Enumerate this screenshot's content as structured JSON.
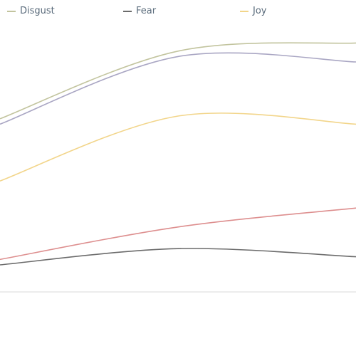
{
  "chart_data": {
    "type": "line",
    "x": [
      0,
      1,
      2
    ],
    "xlim": [
      0,
      2
    ],
    "ylim": [
      0,
      10
    ],
    "grid": false,
    "legend_position": "top-left",
    "series": [
      {
        "name": "Disgust",
        "color": "#c2c49e",
        "values": [
          6.4,
          8.9,
          9.2
        ]
      },
      {
        "name": "",
        "color": "#a9a6c3",
        "values": [
          6.2,
          8.7,
          8.5
        ]
      },
      {
        "name": "Joy",
        "color": "#f2d58a",
        "values": [
          4.1,
          6.5,
          6.2
        ]
      },
      {
        "name": "",
        "color": "#dd8e8e",
        "values": [
          1.2,
          2.4,
          3.1
        ]
      },
      {
        "name": "Fear",
        "color": "#6b6b6b",
        "values": [
          1.0,
          1.6,
          1.3
        ]
      }
    ],
    "legend": [
      {
        "label": "Disgust",
        "color": "#c2c49e"
      },
      {
        "label": "Fear",
        "color": "#6b6b6b"
      },
      {
        "label": "Joy",
        "color": "#f2d58a"
      }
    ]
  }
}
